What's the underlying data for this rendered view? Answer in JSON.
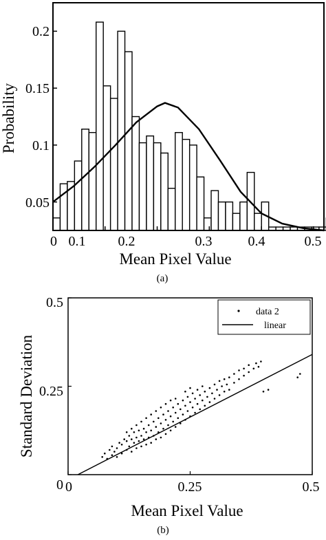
{
  "chart_data": [
    {
      "type": "bar",
      "caption": "(a)",
      "xlabel": "Mean Pixel Value",
      "ylabel": "Probability",
      "xlim": [
        0,
        0.52
      ],
      "ylim": [
        0.025,
        0.225
      ],
      "x_ticks": [
        "0",
        "0.1",
        "0.2",
        "0.3",
        "0.4",
        "0.5"
      ],
      "x_tick_values": [
        0,
        0.1,
        0.2,
        0.3,
        0.4,
        0.5
      ],
      "y_ticks": [
        "0.05",
        "0.1",
        "0.15",
        "0.2"
      ],
      "y_tick_values": [
        0.05,
        0.1,
        0.15,
        0.2
      ],
      "bin_width": 0.0138,
      "bin_start": 0,
      "values": [
        0.036,
        0.066,
        0.068,
        0.086,
        0.114,
        0.111,
        0.208,
        0.152,
        0.141,
        0.2,
        0.182,
        0.125,
        0.102,
        0.108,
        0.102,
        0.093,
        0.062,
        0.111,
        0.105,
        0.1,
        0.072,
        0.036,
        0.06,
        0.05,
        0.05,
        0.04,
        0.05,
        0.076,
        0.04,
        0.05,
        0.028,
        0.028,
        0.028,
        0.028,
        0.028,
        0.028,
        0.028,
        0.028,
        0.036,
        0.032,
        0.028,
        0.036
      ],
      "series": [
        {
          "type": "line",
          "x": [
            0,
            0.04,
            0.08,
            0.12,
            0.16,
            0.2,
            0.215,
            0.24,
            0.28,
            0.32,
            0.36,
            0.4,
            0.44,
            0.48,
            0.52
          ],
          "values": [
            0.05,
            0.064,
            0.081,
            0.1,
            0.12,
            0.134,
            0.137,
            0.133,
            0.114,
            0.087,
            0.059,
            0.04,
            0.031,
            0.027,
            0.025
          ]
        }
      ]
    },
    {
      "type": "scatter",
      "caption": "(b)",
      "xlabel": "Mean Pixel Value",
      "ylabel": "Standard Deviation",
      "xlim": [
        0,
        0.5
      ],
      "ylim": [
        0,
        0.5
      ],
      "x_ticks": [
        "0",
        "0.25",
        "0.5"
      ],
      "x_tick_values": [
        0,
        0.25,
        0.5
      ],
      "y_ticks": [
        "0",
        "0.25",
        "0.5"
      ],
      "y_tick_values": [
        0,
        0.25,
        0.5
      ],
      "legend": {
        "placement": "top-right",
        "entries": [
          {
            "label": "data 2",
            "marker": "dot"
          },
          {
            "label": "linear",
            "marker": "line"
          }
        ]
      },
      "series": [
        {
          "name": "data 2",
          "points": [
            [
              0.07,
              0.05
            ],
            [
              0.075,
              0.06
            ],
            [
              0.08,
              0.045
            ],
            [
              0.085,
              0.07
            ],
            [
              0.09,
              0.055
            ],
            [
              0.09,
              0.08
            ],
            [
              0.095,
              0.065
            ],
            [
              0.1,
              0.05
            ],
            [
              0.1,
              0.075
            ],
            [
              0.105,
              0.09
            ],
            [
              0.11,
              0.06
            ],
            [
              0.11,
              0.085
            ],
            [
              0.115,
              0.1
            ],
            [
              0.12,
              0.07
            ],
            [
              0.12,
              0.095
            ],
            [
              0.12,
              0.12
            ],
            [
              0.125,
              0.08
            ],
            [
              0.125,
              0.11
            ],
            [
              0.13,
              0.065
            ],
            [
              0.13,
              0.1
            ],
            [
              0.13,
              0.13
            ],
            [
              0.135,
              0.09
            ],
            [
              0.135,
              0.12
            ],
            [
              0.14,
              0.075
            ],
            [
              0.14,
              0.105
            ],
            [
              0.14,
              0.14
            ],
            [
              0.145,
              0.095
            ],
            [
              0.145,
              0.125
            ],
            [
              0.15,
              0.08
            ],
            [
              0.15,
              0.11
            ],
            [
              0.15,
              0.15
            ],
            [
              0.155,
              0.1
            ],
            [
              0.155,
              0.13
            ],
            [
              0.16,
              0.085
            ],
            [
              0.16,
              0.12
            ],
            [
              0.16,
              0.16
            ],
            [
              0.165,
              0.105
            ],
            [
              0.165,
              0.14
            ],
            [
              0.17,
              0.09
            ],
            [
              0.17,
              0.125
            ],
            [
              0.17,
              0.17
            ],
            [
              0.175,
              0.11
            ],
            [
              0.175,
              0.15
            ],
            [
              0.18,
              0.1
            ],
            [
              0.18,
              0.135
            ],
            [
              0.18,
              0.18
            ],
            [
              0.185,
              0.12
            ],
            [
              0.185,
              0.16
            ],
            [
              0.19,
              0.105
            ],
            [
              0.19,
              0.145
            ],
            [
              0.19,
              0.19
            ],
            [
              0.195,
              0.13
            ],
            [
              0.195,
              0.17
            ],
            [
              0.2,
              0.115
            ],
            [
              0.2,
              0.155
            ],
            [
              0.2,
              0.2
            ],
            [
              0.205,
              0.14
            ],
            [
              0.205,
              0.18
            ],
            [
              0.21,
              0.125
            ],
            [
              0.21,
              0.165
            ],
            [
              0.21,
              0.21
            ],
            [
              0.215,
              0.15
            ],
            [
              0.215,
              0.19
            ],
            [
              0.22,
              0.135
            ],
            [
              0.22,
              0.175
            ],
            [
              0.22,
              0.215
            ],
            [
              0.225,
              0.16
            ],
            [
              0.225,
              0.2
            ],
            [
              0.23,
              0.145
            ],
            [
              0.23,
              0.185
            ],
            [
              0.235,
              0.17
            ],
            [
              0.235,
              0.21
            ],
            [
              0.24,
              0.155
            ],
            [
              0.24,
              0.195
            ],
            [
              0.24,
              0.235
            ],
            [
              0.245,
              0.18
            ],
            [
              0.245,
              0.22
            ],
            [
              0.25,
              0.165
            ],
            [
              0.25,
              0.205
            ],
            [
              0.25,
              0.245
            ],
            [
              0.255,
              0.19
            ],
            [
              0.255,
              0.23
            ],
            [
              0.26,
              0.175
            ],
            [
              0.26,
              0.215
            ],
            [
              0.265,
              0.2
            ],
            [
              0.265,
              0.24
            ],
            [
              0.27,
              0.185
            ],
            [
              0.27,
              0.225
            ],
            [
              0.275,
              0.21
            ],
            [
              0.275,
              0.25
            ],
            [
              0.28,
              0.195
            ],
            [
              0.28,
              0.235
            ],
            [
              0.285,
              0.22
            ],
            [
              0.29,
              0.205
            ],
            [
              0.29,
              0.245
            ],
            [
              0.295,
              0.23
            ],
            [
              0.3,
              0.215
            ],
            [
              0.3,
              0.255
            ],
            [
              0.305,
              0.24
            ],
            [
              0.31,
              0.225
            ],
            [
              0.31,
              0.265
            ],
            [
              0.315,
              0.25
            ],
            [
              0.32,
              0.235
            ],
            [
              0.32,
              0.27
            ],
            [
              0.325,
              0.255
            ],
            [
              0.33,
              0.24
            ],
            [
              0.33,
              0.275
            ],
            [
              0.34,
              0.26
            ],
            [
              0.34,
              0.285
            ],
            [
              0.35,
              0.27
            ],
            [
              0.35,
              0.295
            ],
            [
              0.36,
              0.28
            ],
            [
              0.36,
              0.3
            ],
            [
              0.37,
              0.29
            ],
            [
              0.37,
              0.31
            ],
            [
              0.38,
              0.3
            ],
            [
              0.385,
              0.315
            ],
            [
              0.39,
              0.305
            ],
            [
              0.395,
              0.32
            ],
            [
              0.4,
              0.235
            ],
            [
              0.41,
              0.24
            ],
            [
              0.47,
              0.275
            ],
            [
              0.475,
              0.285
            ]
          ]
        },
        {
          "name": "linear",
          "type": "line",
          "x": [
            0.02,
            0.5
          ],
          "values": [
            0.0,
            0.34
          ]
        }
      ]
    }
  ]
}
